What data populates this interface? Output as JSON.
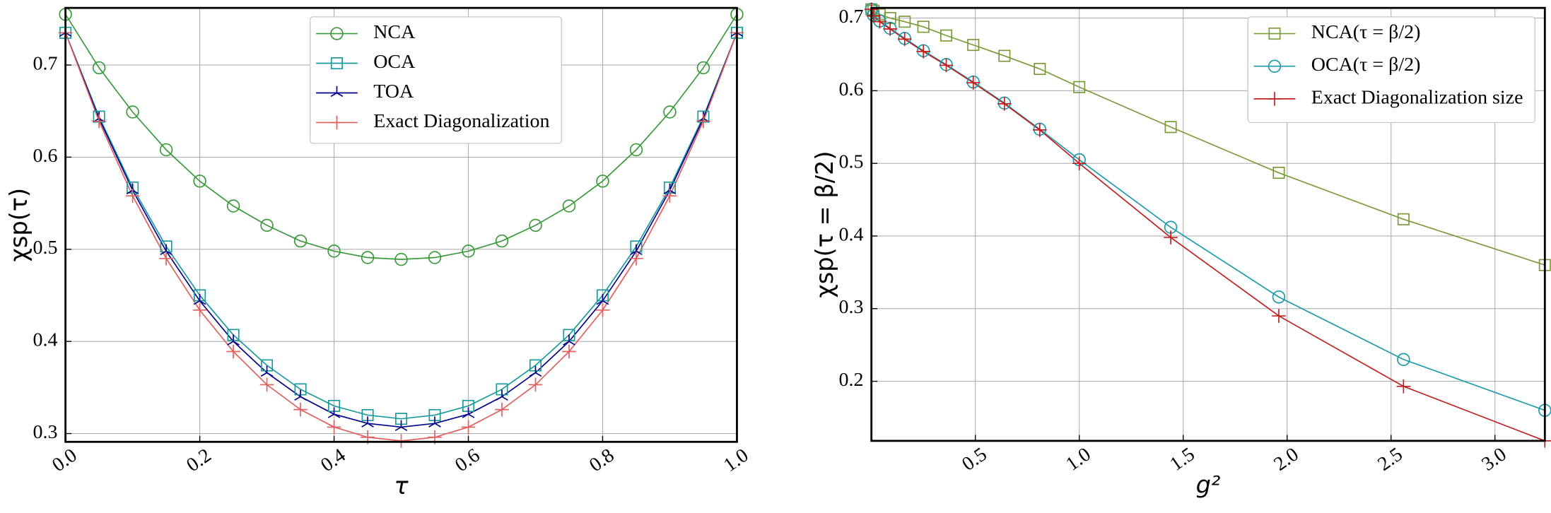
{
  "chart_data": [
    {
      "type": "line",
      "x_label": "τ",
      "y_label": "χsp(τ)",
      "x": [
        0,
        0.05,
        0.1,
        0.15,
        0.2,
        0.25,
        0.3,
        0.35,
        0.4,
        0.45,
        0.5,
        0.55,
        0.6,
        0.65,
        0.7,
        0.75,
        0.8,
        0.85,
        0.9,
        0.95,
        1
      ],
      "series": [
        {
          "name": "NCA",
          "color": "#3a9a3a",
          "marker": "circle",
          "values": [
            0.755,
            0.697,
            0.649,
            0.608,
            0.574,
            0.547,
            0.526,
            0.509,
            0.498,
            0.491,
            0.489,
            0.491,
            0.498,
            0.509,
            0.526,
            0.547,
            0.574,
            0.608,
            0.649,
            0.697,
            0.755
          ]
        },
        {
          "name": "OCA",
          "color": "#1a9a9a",
          "marker": "square",
          "values": [
            0.735,
            0.644,
            0.567,
            0.503,
            0.45,
            0.407,
            0.374,
            0.348,
            0.33,
            0.32,
            0.316,
            0.32,
            0.33,
            0.348,
            0.374,
            0.407,
            0.45,
            0.503,
            0.567,
            0.644,
            0.735
          ]
        },
        {
          "name": "TOA",
          "color": "#00008b",
          "marker": "tri",
          "values": [
            0.735,
            0.642,
            0.564,
            0.498,
            0.444,
            0.4,
            0.366,
            0.34,
            0.321,
            0.311,
            0.307,
            0.311,
            0.321,
            0.34,
            0.366,
            0.4,
            0.444,
            0.498,
            0.564,
            0.642,
            0.735
          ]
        },
        {
          "name": "Exact Diagonalization",
          "color": "#e06060",
          "marker": "plus",
          "values": [
            0.735,
            0.639,
            0.558,
            0.49,
            0.434,
            0.389,
            0.353,
            0.326,
            0.307,
            0.296,
            0.292,
            0.296,
            0.307,
            0.326,
            0.353,
            0.389,
            0.434,
            0.49,
            0.558,
            0.639,
            0.735
          ]
        }
      ],
      "xlim": [
        0,
        1
      ],
      "ylim": [
        0.291,
        0.762
      ],
      "xticks": [
        {
          "value": 0,
          "label": "0.0"
        },
        0.2,
        0.4,
        0.6,
        0.8,
        {
          "value": 1,
          "label": "1.0"
        }
      ],
      "yticks": [
        0.3,
        0.4,
        0.5,
        0.6,
        0.7
      ],
      "grid": true,
      "legend": "upper center"
    },
    {
      "type": "line",
      "x_label": "g²",
      "y_label": "χsp(τ = β/2)",
      "x": [
        0,
        0.01,
        0.04,
        0.09,
        0.16,
        0.25,
        0.36,
        0.49,
        0.64,
        0.81,
        1.0,
        1.44,
        1.96,
        2.56,
        3.24
      ],
      "series": [
        {
          "name": "NCA(τ = β/2)",
          "color": "#7a9a3a",
          "marker": "square",
          "values": [
            0.712,
            0.71,
            0.705,
            0.7,
            0.695,
            0.688,
            0.676,
            0.663,
            0.648,
            0.63,
            0.605,
            0.55,
            0.487,
            0.423,
            0.36
          ]
        },
        {
          "name": "OCA(τ = β/2)",
          "color": "#1a9aaa",
          "marker": "circle",
          "values": [
            0.712,
            0.704,
            0.696,
            0.686,
            0.672,
            0.655,
            0.636,
            0.612,
            0.583,
            0.547,
            0.505,
            0.412,
            0.316,
            0.23,
            0.16
          ]
        },
        {
          "name": "Exact Diagonalization size",
          "color": "#c02020",
          "marker": "plus",
          "values": [
            0.712,
            0.703,
            0.695,
            0.685,
            0.671,
            0.654,
            0.635,
            0.611,
            0.582,
            0.546,
            0.5,
            0.398,
            0.29,
            0.193,
            0.118
          ]
        }
      ],
      "xlim": [
        0,
        3.24
      ],
      "ylim": [
        0.118,
        0.714
      ],
      "xticks": [
        0.5,
        {
          "value": 1,
          "label": "1.0"
        },
        1.5,
        {
          "value": 2,
          "label": "2.0"
        },
        2.5,
        {
          "value": 3,
          "label": "3.0"
        }
      ],
      "yticks": [
        0.2,
        0.3,
        0.4,
        0.5,
        0.6,
        0.7
      ],
      "grid": true,
      "legend": "upper right"
    }
  ]
}
